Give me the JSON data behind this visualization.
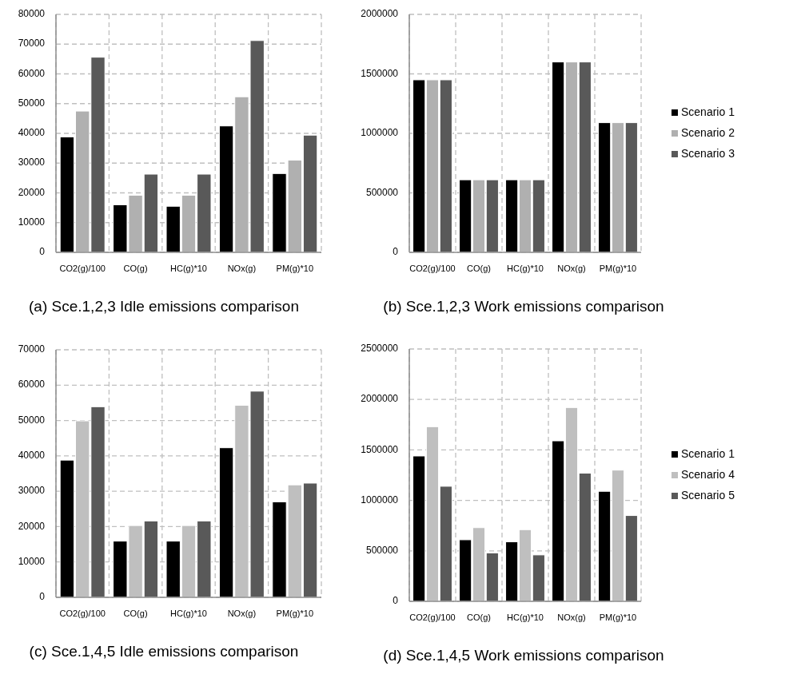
{
  "chart_data": [
    {
      "type": "bar",
      "categories": [
        "CO2(g)/100",
        "CO(g)",
        "HC(g)*10",
        "NOx(g)",
        "PM(g)*10"
      ],
      "series": [
        {
          "color": "#000000",
          "values": [
            38800,
            16000,
            15500,
            42500,
            26500
          ]
        },
        {
          "color": "#b0b0b0",
          "values": [
            47500,
            19200,
            19200,
            52300,
            31000
          ]
        },
        {
          "color": "#595959",
          "values": [
            65600,
            26300,
            26300,
            71200,
            39400
          ]
        }
      ],
      "ylim": [
        0,
        80000
      ],
      "yticks": [
        0,
        10000,
        20000,
        30000,
        40000,
        50000,
        60000,
        70000,
        80000
      ],
      "grid": true,
      "legend": false,
      "annotations": [
        "(a) Sce.1,2,3 Idle emissions comparison"
      ]
    },
    {
      "type": "bar",
      "categories": [
        "CO2(g)/100",
        "CO(g)",
        "HC(g)*10",
        "NOx(g)",
        "PM(g)*10"
      ],
      "series": [
        {
          "name": "Scenario 1",
          "color": "#000000",
          "values": [
            1450000,
            610000,
            610000,
            1600000,
            1090000
          ]
        },
        {
          "name": "Scenario 2",
          "color": "#b0b0b0",
          "values": [
            1450000,
            610000,
            610000,
            1600000,
            1090000
          ]
        },
        {
          "name": "Scenario 3",
          "color": "#595959",
          "values": [
            1450000,
            610000,
            610000,
            1600000,
            1090000
          ]
        }
      ],
      "ylim": [
        0,
        2000000
      ],
      "yticks": [
        0,
        500000,
        1000000,
        1500000,
        2000000
      ],
      "grid": true,
      "legend": "right",
      "annotations": [
        "(b) Sce.1,2,3 Work emissions comparison"
      ]
    },
    {
      "type": "bar",
      "categories": [
        "CO2(g)/100",
        "CO(g)",
        "HC(g)*10",
        "NOx(g)",
        "PM(g)*10"
      ],
      "series": [
        {
          "color": "#000000",
          "values": [
            38800,
            15900,
            15900,
            42300,
            27000
          ]
        },
        {
          "color": "#bfbfbf",
          "values": [
            49900,
            20300,
            20300,
            54300,
            31800
          ]
        },
        {
          "color": "#595959",
          "values": [
            53900,
            21600,
            21600,
            58300,
            32300
          ]
        }
      ],
      "ylim": [
        0,
        70000
      ],
      "yticks": [
        0,
        10000,
        20000,
        30000,
        40000,
        50000,
        60000,
        70000
      ],
      "grid": true,
      "legend": false,
      "annotations": [
        "(c) Sce.1,4,5 Idle emissions comparison"
      ]
    },
    {
      "type": "bar",
      "categories": [
        "CO2(g)/100",
        "CO(g)",
        "HC(g)*10",
        "NOx(g)",
        "PM(g)*10"
      ],
      "series": [
        {
          "name": "Scenario 1",
          "color": "#000000",
          "values": [
            1440000,
            610000,
            590000,
            1590000,
            1090000
          ]
        },
        {
          "name": "Scenario 4",
          "color": "#bfbfbf",
          "values": [
            1730000,
            730000,
            710000,
            1920000,
            1300000
          ]
        },
        {
          "name": "Scenario 5",
          "color": "#595959",
          "values": [
            1140000,
            480000,
            460000,
            1270000,
            850000
          ]
        }
      ],
      "ylim": [
        0,
        2500000
      ],
      "yticks": [
        0,
        500000,
        1000000,
        1500000,
        2000000,
        2500000
      ],
      "grid": true,
      "legend": "right",
      "annotations": [
        "(d) Sce.1,4,5 Work emissions comparison"
      ]
    }
  ]
}
